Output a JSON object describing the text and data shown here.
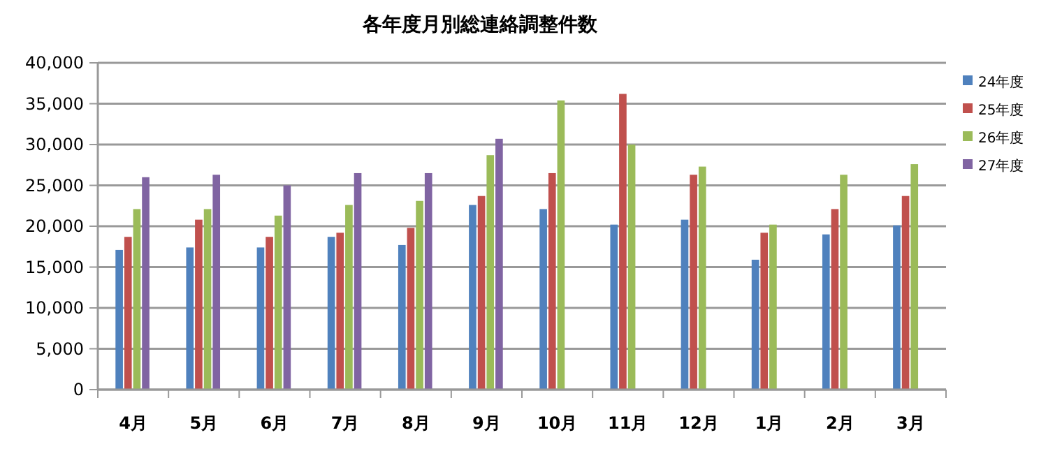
{
  "chart_data": {
    "type": "bar",
    "title": "各年度月別総連絡調整件数",
    "categories": [
      "4月",
      "5月",
      "6月",
      "7月",
      "8月",
      "9月",
      "10月",
      "11月",
      "12月",
      "1月",
      "2月",
      "3月"
    ],
    "series": [
      {
        "name": "24年度",
        "color": "#4f81bd",
        "values": [
          17100,
          17400,
          17400,
          18700,
          17700,
          22600,
          22100,
          20200,
          20800,
          15900,
          19000,
          20100
        ]
      },
      {
        "name": "25年度",
        "color": "#c0504d",
        "values": [
          18700,
          20800,
          18700,
          19200,
          19800,
          23700,
          26500,
          36200,
          26300,
          19200,
          22100,
          23700
        ]
      },
      {
        "name": "26年度",
        "color": "#9bbb59",
        "values": [
          22100,
          22100,
          21300,
          22600,
          23100,
          28700,
          35400,
          30000,
          27300,
          20200,
          26300,
          27600
        ]
      },
      {
        "name": "27年度",
        "color": "#8064a2",
        "values": [
          26000,
          26300,
          25000,
          26500,
          26500,
          30700,
          null,
          null,
          null,
          null,
          null,
          null
        ]
      }
    ],
    "ylim": [
      0,
      40000
    ],
    "yticks": [
      {
        "value": 0,
        "label": "0"
      },
      {
        "value": 5000,
        "label": "5,000"
      },
      {
        "value": 10000,
        "label": "10,000"
      },
      {
        "value": 15000,
        "label": "15,000"
      },
      {
        "value": 20000,
        "label": "20,000"
      },
      {
        "value": 25000,
        "label": "25,000"
      },
      {
        "value": 30000,
        "label": "30,000"
      },
      {
        "value": 35000,
        "label": "35,000"
      },
      {
        "value": 40000,
        "label": "40,000"
      }
    ],
    "grid": "y",
    "legend": "right"
  }
}
